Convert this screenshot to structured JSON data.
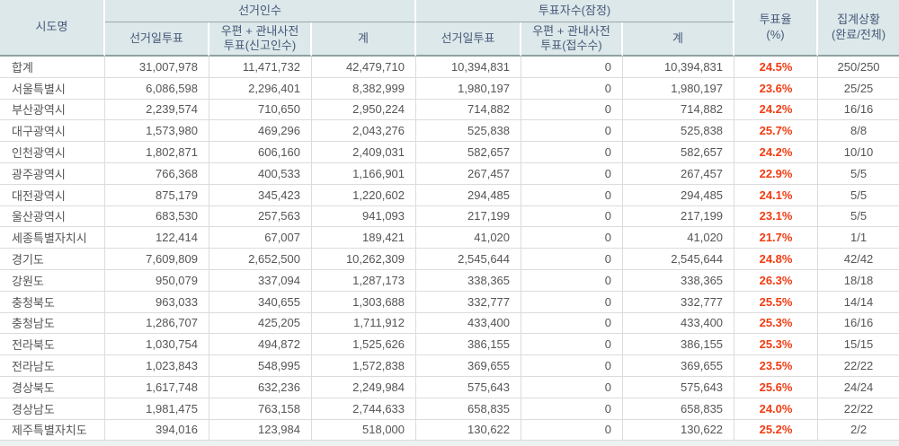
{
  "colors": {
    "header_bg": "#dce8e9",
    "header_text": "#47597a",
    "turnout_red": "#f13c12",
    "grid_line": "#dcdcdc",
    "header_divider": "#8fa0a2"
  },
  "table": {
    "group_headers": {
      "electors": "선거인수",
      "voters": "투표자수(잠정)"
    },
    "columns": {
      "region": "시도명",
      "electors_day": "선거일투표",
      "electors_mail": "우편 + 관내사전\n투표(신고인수)",
      "electors_total": "계",
      "voters_day": "선거일투표",
      "voters_mail": "우편 + 관내사전\n투표(접수수)",
      "voters_total": "계",
      "turnout": "투표율\n(%)",
      "status": "집계상황\n(완료/전체)"
    },
    "rows": [
      {
        "region": "합계",
        "electors_day": "31,007,978",
        "electors_mail": "11,471,732",
        "electors_total": "42,479,710",
        "voters_day": "10,394,831",
        "voters_mail": "0",
        "voters_total": "10,394,831",
        "turnout": "24.5%",
        "status": "250/250"
      },
      {
        "region": "서울특별시",
        "electors_day": "6,086,598",
        "electors_mail": "2,296,401",
        "electors_total": "8,382,999",
        "voters_day": "1,980,197",
        "voters_mail": "0",
        "voters_total": "1,980,197",
        "turnout": "23.6%",
        "status": "25/25"
      },
      {
        "region": "부산광역시",
        "electors_day": "2,239,574",
        "electors_mail": "710,650",
        "electors_total": "2,950,224",
        "voters_day": "714,882",
        "voters_mail": "0",
        "voters_total": "714,882",
        "turnout": "24.2%",
        "status": "16/16"
      },
      {
        "region": "대구광역시",
        "electors_day": "1,573,980",
        "electors_mail": "469,296",
        "electors_total": "2,043,276",
        "voters_day": "525,838",
        "voters_mail": "0",
        "voters_total": "525,838",
        "turnout": "25.7%",
        "status": "8/8"
      },
      {
        "region": "인천광역시",
        "electors_day": "1,802,871",
        "electors_mail": "606,160",
        "electors_total": "2,409,031",
        "voters_day": "582,657",
        "voters_mail": "0",
        "voters_total": "582,657",
        "turnout": "24.2%",
        "status": "10/10"
      },
      {
        "region": "광주광역시",
        "electors_day": "766,368",
        "electors_mail": "400,533",
        "electors_total": "1,166,901",
        "voters_day": "267,457",
        "voters_mail": "0",
        "voters_total": "267,457",
        "turnout": "22.9%",
        "status": "5/5"
      },
      {
        "region": "대전광역시",
        "electors_day": "875,179",
        "electors_mail": "345,423",
        "electors_total": "1,220,602",
        "voters_day": "294,485",
        "voters_mail": "0",
        "voters_total": "294,485",
        "turnout": "24.1%",
        "status": "5/5"
      },
      {
        "region": "울산광역시",
        "electors_day": "683,530",
        "electors_mail": "257,563",
        "electors_total": "941,093",
        "voters_day": "217,199",
        "voters_mail": "0",
        "voters_total": "217,199",
        "turnout": "23.1%",
        "status": "5/5"
      },
      {
        "region": "세종특별자치시",
        "electors_day": "122,414",
        "electors_mail": "67,007",
        "electors_total": "189,421",
        "voters_day": "41,020",
        "voters_mail": "0",
        "voters_total": "41,020",
        "turnout": "21.7%",
        "status": "1/1"
      },
      {
        "region": "경기도",
        "electors_day": "7,609,809",
        "electors_mail": "2,652,500",
        "electors_total": "10,262,309",
        "voters_day": "2,545,644",
        "voters_mail": "0",
        "voters_total": "2,545,644",
        "turnout": "24.8%",
        "status": "42/42"
      },
      {
        "region": "강원도",
        "electors_day": "950,079",
        "electors_mail": "337,094",
        "electors_total": "1,287,173",
        "voters_day": "338,365",
        "voters_mail": "0",
        "voters_total": "338,365",
        "turnout": "26.3%",
        "status": "18/18"
      },
      {
        "region": "충청북도",
        "electors_day": "963,033",
        "electors_mail": "340,655",
        "electors_total": "1,303,688",
        "voters_day": "332,777",
        "voters_mail": "0",
        "voters_total": "332,777",
        "turnout": "25.5%",
        "status": "14/14"
      },
      {
        "region": "충청남도",
        "electors_day": "1,286,707",
        "electors_mail": "425,205",
        "electors_total": "1,711,912",
        "voters_day": "433,400",
        "voters_mail": "0",
        "voters_total": "433,400",
        "turnout": "25.3%",
        "status": "16/16"
      },
      {
        "region": "전라북도",
        "electors_day": "1,030,754",
        "electors_mail": "494,872",
        "electors_total": "1,525,626",
        "voters_day": "386,155",
        "voters_mail": "0",
        "voters_total": "386,155",
        "turnout": "25.3%",
        "status": "15/15"
      },
      {
        "region": "전라남도",
        "electors_day": "1,023,843",
        "electors_mail": "548,995",
        "electors_total": "1,572,838",
        "voters_day": "369,655",
        "voters_mail": "0",
        "voters_total": "369,655",
        "turnout": "23.5%",
        "status": "22/22"
      },
      {
        "region": "경상북도",
        "electors_day": "1,617,748",
        "electors_mail": "632,236",
        "electors_total": "2,249,984",
        "voters_day": "575,643",
        "voters_mail": "0",
        "voters_total": "575,643",
        "turnout": "25.6%",
        "status": "24/24"
      },
      {
        "region": "경상남도",
        "electors_day": "1,981,475",
        "electors_mail": "763,158",
        "electors_total": "2,744,633",
        "voters_day": "658,835",
        "voters_mail": "0",
        "voters_total": "658,835",
        "turnout": "24.0%",
        "status": "22/22"
      },
      {
        "region": "제주특별자치도",
        "electors_day": "394,016",
        "electors_mail": "123,984",
        "electors_total": "518,000",
        "voters_day": "130,622",
        "voters_mail": "0",
        "voters_total": "130,622",
        "turnout": "25.2%",
        "status": "2/2"
      }
    ]
  }
}
